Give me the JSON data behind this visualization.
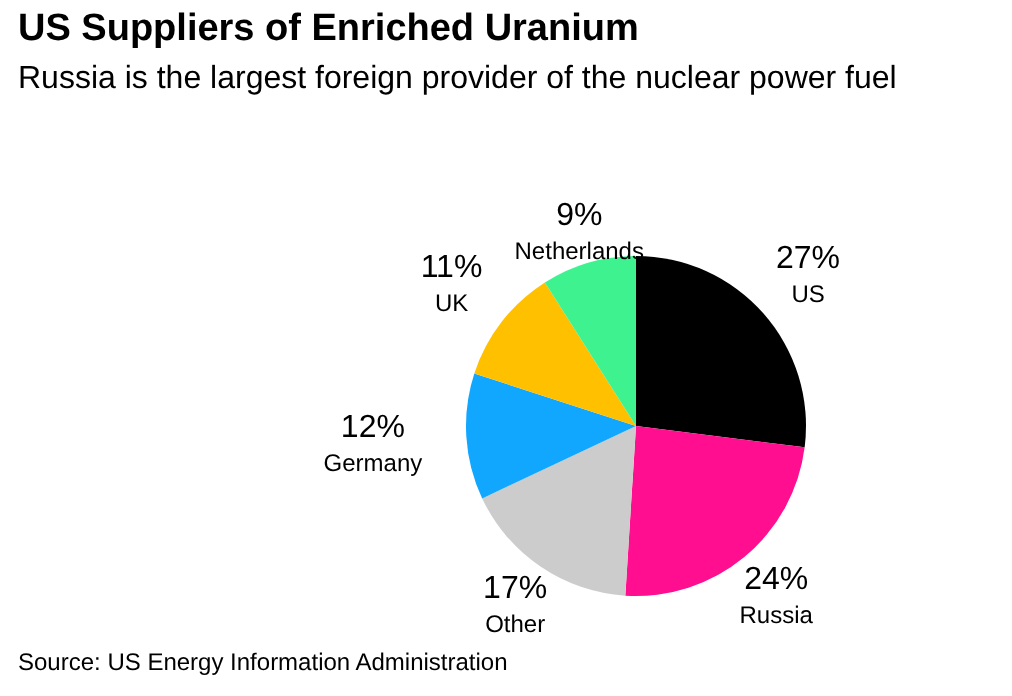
{
  "chart_data": {
    "type": "pie",
    "title": "US Suppliers of Enriched Uranium",
    "subtitle": "Russia is the largest foreign provider of the nuclear power fuel",
    "categories": [
      "US",
      "Russia",
      "Other",
      "Germany",
      "UK",
      "Netherlands"
    ],
    "values": [
      27,
      24,
      17,
      12,
      11,
      9
    ],
    "value_labels": [
      "27%",
      "24%",
      "17%",
      "12%",
      "11%",
      "9%"
    ],
    "colors": [
      "#000000",
      "#ff0f8f",
      "#cccccc",
      "#12a7ff",
      "#ffc000",
      "#3df28f"
    ],
    "annotations": [
      "Source: US Energy Information Administration"
    ]
  }
}
